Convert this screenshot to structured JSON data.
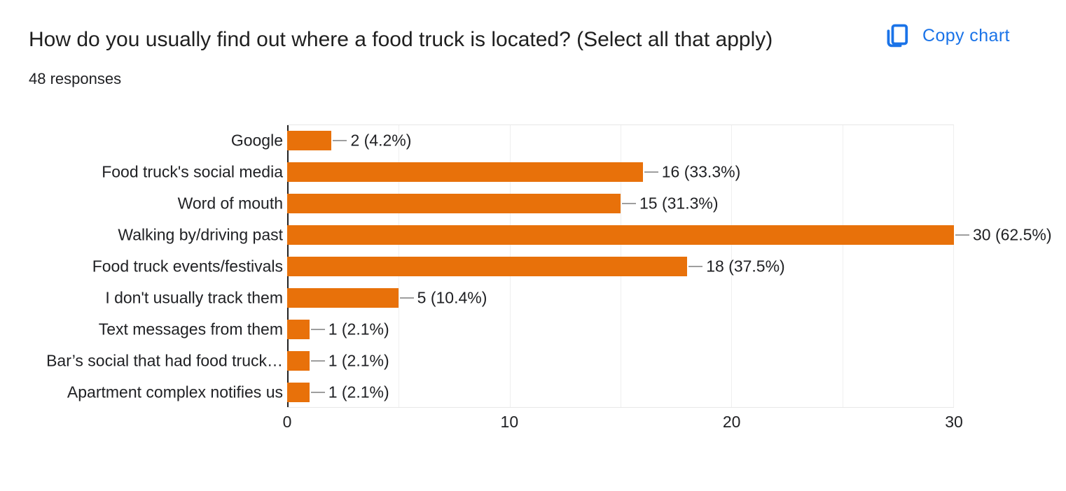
{
  "header": {
    "title": "How do you usually find out where a food truck is located? (Select all that apply)",
    "responses_count": "48 responses",
    "copy_chart_label": "Copy chart"
  },
  "colors": {
    "bar": "#e8710a",
    "accent_blue": "#1a73e8",
    "axis": "#212121",
    "gridline": "#efefef",
    "connector": "#9e9e9e",
    "text": "#202124"
  },
  "chart_data": {
    "type": "bar",
    "orientation": "horizontal",
    "title": "How do you usually find out where a food truck is located? (Select all that apply)",
    "categories": [
      "Google",
      "Food truck's social media",
      "Word of mouth",
      "Walking by/driving past",
      "Food truck events/festivals",
      "I don't usually track them",
      "Text messages from them",
      "Bar’s social that had food truck…",
      "Apartment complex notifies us"
    ],
    "values": [
      2,
      16,
      15,
      30,
      18,
      5,
      1,
      1,
      1
    ],
    "value_labels": [
      "2 (4.2%)",
      "16 (33.3%)",
      "15 (31.3%)",
      "30 (62.5%)",
      "18 (37.5%)",
      "5 (10.4%)",
      "1 (2.1%)",
      "1 (2.1%)",
      "1 (2.1%)"
    ],
    "percentages": [
      4.2,
      33.3,
      31.3,
      62.5,
      37.5,
      10.4,
      2.1,
      2.1,
      2.1
    ],
    "total_responses": 48,
    "xlim": [
      0,
      30
    ],
    "x_ticks": [
      0,
      10,
      20,
      30
    ],
    "gridlines": [
      5,
      10,
      15,
      20,
      25,
      30
    ],
    "grid": "on",
    "legend": "none"
  }
}
